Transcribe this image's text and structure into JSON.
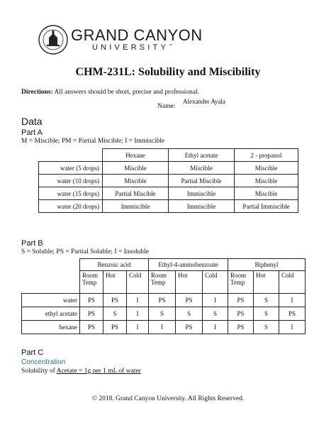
{
  "header": {
    "brand_line1": "GRAND CANYON",
    "brand_line2": "UNIVERSITY",
    "brand_tm": "™",
    "seal_text_top": "GRAND CANYON UNIV",
    "seal_text_bottom": "ARIZONA 1949"
  },
  "document": {
    "title": "CHM-231L: Solubility and Miscibility",
    "directions_label": "Directions:",
    "directions_text": " All answers should be short, precise and professional.",
    "name_label": "Name:",
    "name_value": "Alexander Ayala"
  },
  "data_heading": "Data",
  "part_a": {
    "heading": "Part A",
    "legend": "M = Miscible; PM = Partial Miscible; I = Immiscible",
    "columns": [
      "Hexane",
      "Ethyl acetate",
      "2 - propanol"
    ],
    "rows": [
      {
        "label": "water (5 drops)",
        "cells": [
          "Miscible",
          "Miscible",
          "Miscible"
        ]
      },
      {
        "label": "water (10 drops)",
        "cells": [
          "Miscible",
          "Partial Miscible",
          "Miscible"
        ]
      },
      {
        "label": "water (15 drops)",
        "cells": [
          "Partial Miscible",
          "Immiscible",
          "Miscible"
        ]
      },
      {
        "label": "water (20 drops)",
        "cells": [
          "Immiscible",
          "Immiscible",
          "Partial Immiscible"
        ]
      }
    ]
  },
  "part_b": {
    "heading": "Part B",
    "legend": "S = Soluble; PS = Partial Soluble; I = Insoluble",
    "groups": [
      "Benzoic acid",
      "Ethyl-4-aminobenzoate",
      "Biphenyl"
    ],
    "subcols": [
      "Room Temp",
      "Hot",
      "Cold"
    ],
    "rows": [
      {
        "label": "water",
        "cells": [
          "PS",
          "PS",
          "I",
          "PS",
          "PS",
          "I",
          "PS",
          "S",
          "I"
        ]
      },
      {
        "label": "ethyl acetate",
        "cells": [
          "PS",
          "S",
          "I",
          "S",
          "S",
          "S",
          "PS",
          "S",
          "PS"
        ]
      },
      {
        "label": "hexane",
        "cells": [
          "PS",
          "PS",
          "I",
          "I",
          "PS",
          "I",
          "PS",
          "S",
          "I"
        ]
      }
    ]
  },
  "part_c": {
    "heading": "Part C",
    "subheading": "Concentration",
    "solubility_prefix": "Solubility of ",
    "solubility_answer": "Acetate = 1g per 1 mL of water"
  },
  "footer": "© 2018. Grand Canyon University. All Rights Reserved."
}
